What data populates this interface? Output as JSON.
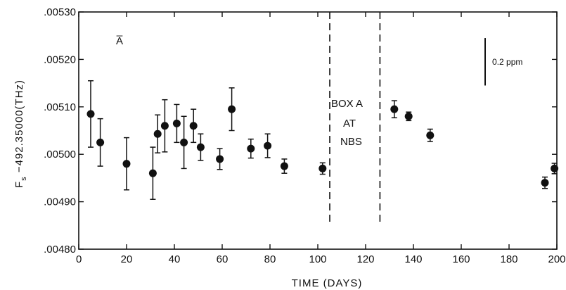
{
  "chart_data": {
    "type": "scatter",
    "title": "",
    "xlabel": "TIME   (DAYS)",
    "ylabel": "F",
    "ylabel_sub": "s",
    "ylabel_rest": " −492.35000(THz)",
    "xlim": [
      0,
      200
    ],
    "ylim": [
      0.0048,
      0.0053
    ],
    "x_ticks": [
      0,
      20,
      40,
      60,
      80,
      100,
      120,
      140,
      160,
      180,
      200
    ],
    "x_tick_labels": [
      "0",
      "20",
      "40",
      "60",
      "80",
      "100",
      "120",
      "140",
      "160",
      "180",
      "200"
    ],
    "y_ticks": [
      0.0048,
      0.0049,
      0.005,
      0.0051,
      0.0052,
      0.0053
    ],
    "y_tick_labels": [
      ".00480",
      ".00490",
      ".00500",
      ".00510",
      ".00520",
      ".00530"
    ],
    "grid": false,
    "series": [
      {
        "points": [
          {
            "x": 5,
            "y": 0.005085,
            "err": 7e-05
          },
          {
            "x": 9,
            "y": 0.005025,
            "err": 5e-05
          },
          {
            "x": 20,
            "y": 0.00498,
            "err": 5.5e-05
          },
          {
            "x": 31,
            "y": 0.00496,
            "err": 5.5e-05
          },
          {
            "x": 33,
            "y": 0.005043,
            "err": 4e-05
          },
          {
            "x": 36,
            "y": 0.00506,
            "err": 5.5e-05
          },
          {
            "x": 41,
            "y": 0.005065,
            "err": 4e-05
          },
          {
            "x": 44,
            "y": 0.005025,
            "err": 5.5e-05
          },
          {
            "x": 48,
            "y": 0.00506,
            "err": 3.5e-05
          },
          {
            "x": 51,
            "y": 0.005015,
            "err": 2.8e-05
          },
          {
            "x": 59,
            "y": 0.00499,
            "err": 2.2e-05
          },
          {
            "x": 64,
            "y": 0.005095,
            "err": 4.5e-05
          },
          {
            "x": 72,
            "y": 0.005012,
            "err": 2e-05
          },
          {
            "x": 79,
            "y": 0.005018,
            "err": 2.5e-05
          },
          {
            "x": 86,
            "y": 0.004975,
            "err": 1.5e-05
          },
          {
            "x": 102,
            "y": 0.00497,
            "err": 1.2e-05
          },
          {
            "x": 132,
            "y": 0.005095,
            "err": 1.8e-05
          },
          {
            "x": 138,
            "y": 0.00508,
            "err": 9e-06
          },
          {
            "x": 147,
            "y": 0.00504,
            "err": 1.3e-05
          },
          {
            "x": 195,
            "y": 0.00494,
            "err": 1.2e-05
          },
          {
            "x": 199,
            "y": 0.00497,
            "err": 1.1e-05
          }
        ]
      }
    ],
    "vertical_lines": [
      {
        "x": 105,
        "style": "dashed"
      },
      {
        "x": 126,
        "style": "dashed"
      }
    ],
    "annotations": {
      "corner_label": "A̅",
      "box_line1": "BOX   A",
      "box_line2": "AT",
      "box_line3": "NBS",
      "scale_bar": {
        "x": 170,
        "y_low": 0.005145,
        "y_high": 0.005245,
        "label": "0.2 ppm"
      }
    }
  }
}
